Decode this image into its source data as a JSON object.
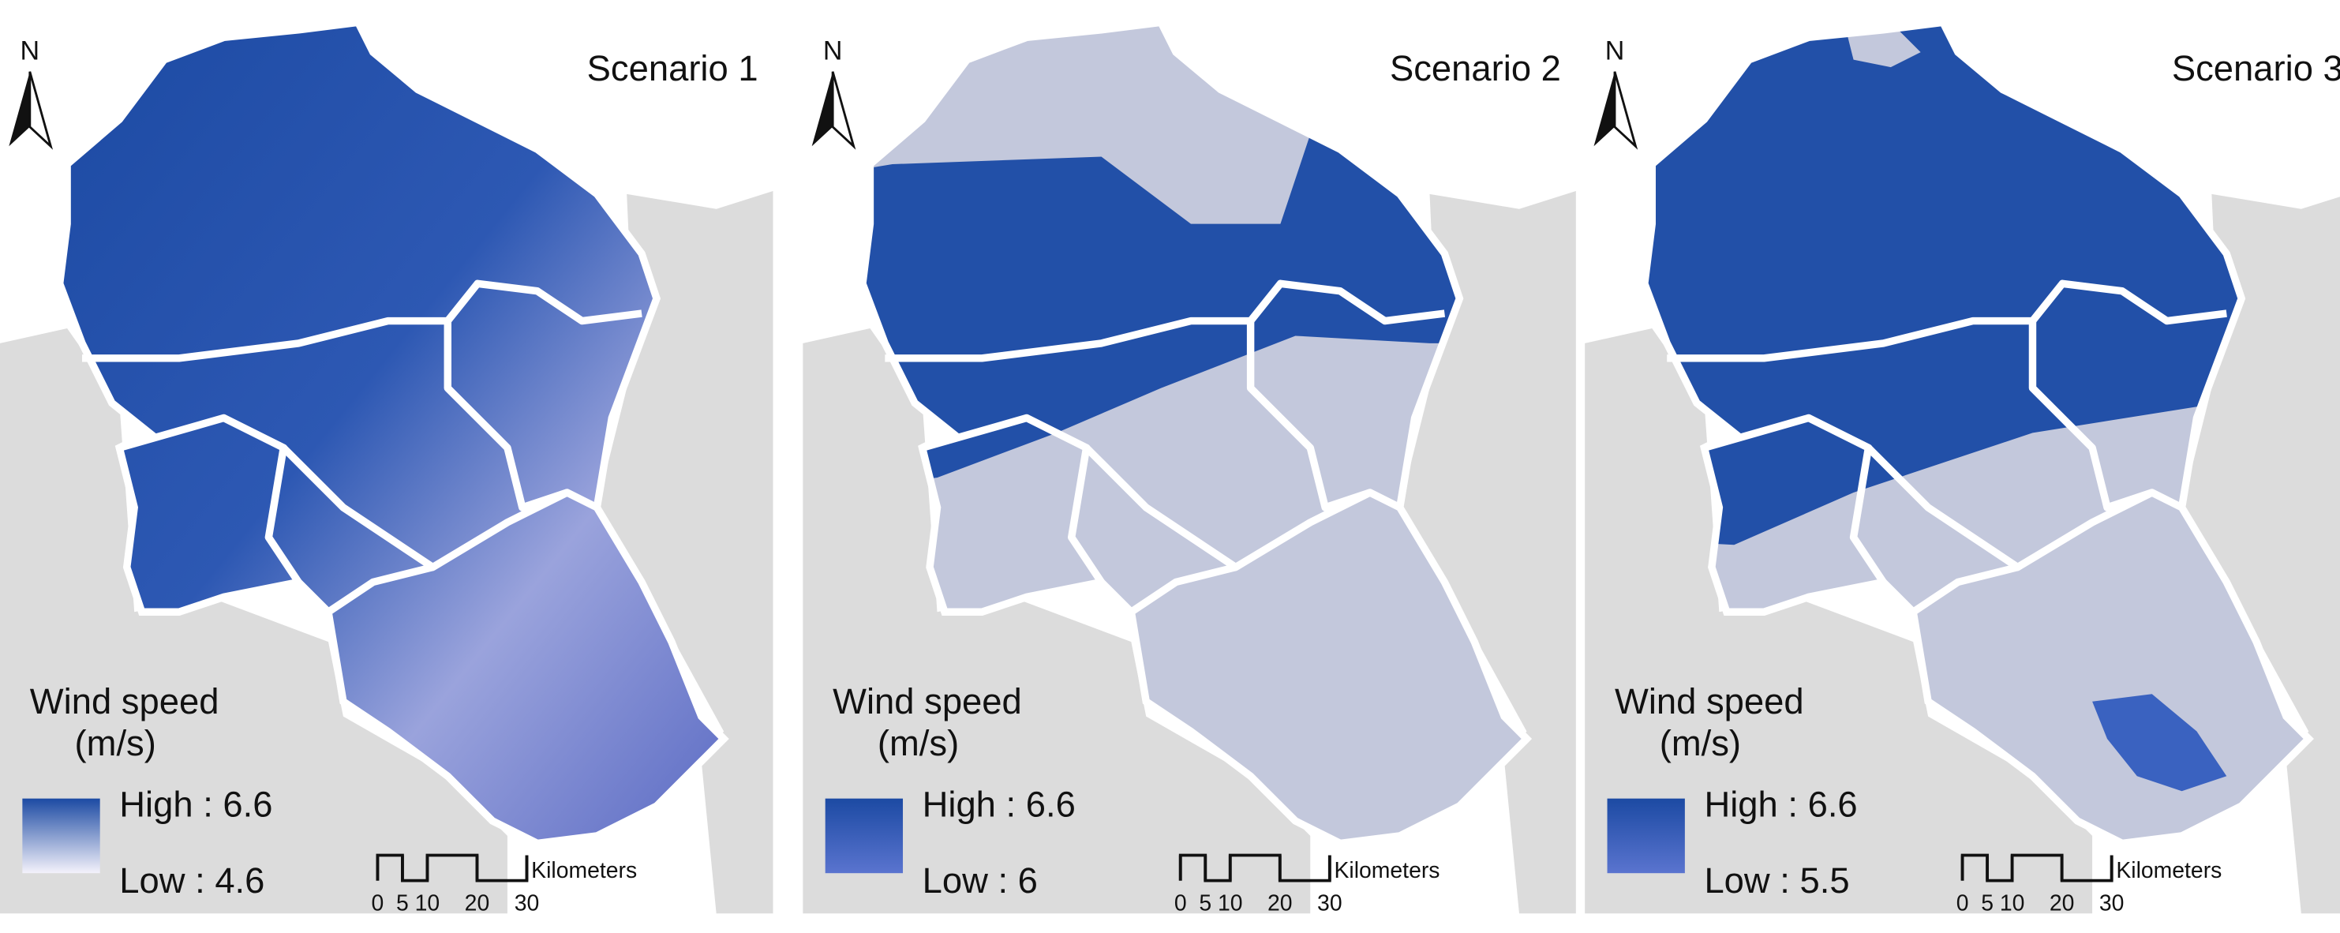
{
  "panels": [
    {
      "title": "Scenario 1",
      "north": "N",
      "legend": {
        "title": "Wind speed",
        "unit": "(m/s)",
        "high": "High : 6.6",
        "low": "Low : 4.6"
      },
      "scale": {
        "ticks": [
          0,
          5,
          10,
          20,
          30
        ],
        "unit": "Kilometers"
      }
    },
    {
      "title": "Scenario 2",
      "north": "N",
      "legend": {
        "title": "Wind speed",
        "unit": "(m/s)",
        "high": "High : 6.6",
        "low": "Low : 6"
      },
      "scale": {
        "ticks": [
          0,
          5,
          10,
          20,
          30
        ],
        "unit": "Kilometers"
      }
    },
    {
      "title": "Scenario 3",
      "north": "N",
      "legend": {
        "title": "Wind speed",
        "unit": "(m/s)",
        "high": "High : 6.6",
        "low": "Low : 5.5"
      },
      "scale": {
        "ticks": [
          0,
          5,
          10,
          20,
          30
        ],
        "unit": "Kilometers"
      }
    }
  ]
}
